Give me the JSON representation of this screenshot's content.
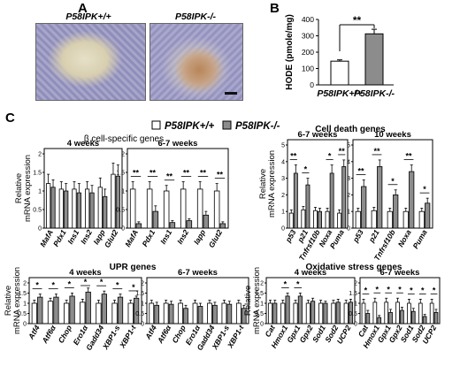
{
  "panels": {
    "A": "A",
    "B": "B",
    "C": "C"
  },
  "micrograph_labels": {
    "left": "P58IPK+/+",
    "right": "P58IPK-/-"
  },
  "legend": {
    "wt": "P58IPK+/+",
    "ko": "P58IPK-/-"
  },
  "colors": {
    "wt_fill": "#ffffff",
    "ko_fill": "#8c8c8c",
    "axis": "#000000"
  },
  "chart_data": [
    {
      "id": "B",
      "type": "bar",
      "ylabel": "HODE (pmole/mg)",
      "ylim": [
        0,
        400
      ],
      "yticks": [
        0,
        100,
        200,
        300,
        400
      ],
      "categories": [
        "P58IPK+/+",
        "P58IPK-/-"
      ],
      "values": [
        145,
        312
      ],
      "errors": [
        8,
        28
      ],
      "significance": "**"
    },
    {
      "id": "beta-4wk",
      "type": "bar",
      "group_title": "β cell-specific genes",
      "subtitle": "4 weeks",
      "ylabel": "Relative mRNA expression",
      "ylim": [
        0,
        2
      ],
      "yticks": [
        0,
        0.5,
        1,
        1.5,
        2
      ],
      "categories": [
        "MafA",
        "Pdx1",
        "Ins1",
        "Ins2",
        "Iapp",
        "Glut2"
      ],
      "series": [
        {
          "name": "P58IPK+/+",
          "values": [
            1.2,
            1.05,
            1.05,
            1.05,
            1.1,
            1.45
          ],
          "errors": [
            0.25,
            0.2,
            0.2,
            0.2,
            0.25,
            0.3
          ]
        },
        {
          "name": "P58IPK-/-",
          "values": [
            1.1,
            1.0,
            0.95,
            0.95,
            0.85,
            1.4
          ],
          "errors": [
            0.2,
            0.2,
            0.25,
            0.2,
            0.2,
            0.3
          ]
        }
      ],
      "significance": [
        "",
        "",
        "",
        "",
        "",
        ""
      ]
    },
    {
      "id": "beta-67wk",
      "type": "bar",
      "subtitle": "6-7 weeks",
      "ylim": [
        0,
        2
      ],
      "yticks": [
        0,
        0.5,
        1,
        1.5,
        2
      ],
      "categories": [
        "MafA",
        "Pdx1",
        "Ins1",
        "Ins2",
        "Iapp",
        "Glut2"
      ],
      "series": [
        {
          "name": "P58IPK+/+",
          "values": [
            1.05,
            1.05,
            1.0,
            1.05,
            1.05,
            1.0
          ],
          "errors": [
            0.2,
            0.2,
            0.15,
            0.2,
            0.2,
            0.2
          ]
        },
        {
          "name": "P58IPK-/-",
          "values": [
            0.12,
            0.45,
            0.15,
            0.2,
            0.35,
            0.12
          ],
          "errors": [
            0.05,
            0.15,
            0.05,
            0.05,
            0.1,
            0.05
          ]
        }
      ],
      "significance": [
        "**",
        "**",
        "**",
        "**",
        "**",
        "**"
      ]
    },
    {
      "id": "death-67wk",
      "type": "bar",
      "group_title": "Cell death genes",
      "subtitle": "6-7 weeks",
      "ylabel": "Relative mRNA expression",
      "ylim": [
        0,
        5
      ],
      "yticks": [
        0,
        1,
        2,
        3,
        4,
        5
      ],
      "categories": [
        "p53",
        "p21",
        "Tnfrsf10b",
        "Noxa",
        "Puma"
      ],
      "series": [
        {
          "name": "P58IPK+/+",
          "values": [
            0.9,
            1.1,
            1.05,
            1.0,
            0.9
          ],
          "errors": [
            0.2,
            0.2,
            0.2,
            0.2,
            0.2
          ]
        },
        {
          "name": "P58IPK-/-",
          "values": [
            3.3,
            2.6,
            1.0,
            3.3,
            3.7
          ],
          "errors": [
            0.5,
            0.4,
            0.2,
            0.5,
            0.4
          ]
        }
      ],
      "significance": [
        "**",
        "*",
        "",
        "*",
        "**"
      ]
    },
    {
      "id": "death-10wk",
      "type": "bar",
      "subtitle": "10 weeks",
      "ylim": [
        0,
        5
      ],
      "yticks": [
        0,
        1,
        2,
        3,
        4,
        5
      ],
      "categories": [
        "p53",
        "p21",
        "Tnfrsf10b",
        "Noxa",
        "Puma"
      ],
      "series": [
        {
          "name": "P58IPK+/+",
          "values": [
            1.0,
            1.05,
            1.0,
            1.0,
            1.0
          ],
          "errors": [
            0.2,
            0.2,
            0.2,
            0.2,
            0.2
          ]
        },
        {
          "name": "P58IPK-/-",
          "values": [
            2.5,
            3.7,
            2.0,
            3.4,
            1.5
          ],
          "errors": [
            0.4,
            0.4,
            0.3,
            0.4,
            0.3
          ]
        }
      ],
      "significance": [
        "**",
        "**",
        "*",
        "**",
        "*"
      ]
    },
    {
      "id": "upr-4wk",
      "type": "bar",
      "group_title": "UPR genes",
      "subtitle": "4 weeks",
      "ylabel": "Relative mRNA expression",
      "ylim": [
        0,
        2
      ],
      "yticks": [
        0,
        0.5,
        1,
        1.5,
        2
      ],
      "categories": [
        "Atf4",
        "Atf6α",
        "Chop",
        "Ero1α",
        "Gadd34",
        "XBP1-s",
        "XBP1-t"
      ],
      "series": [
        {
          "name": "P58IPK+/+",
          "values": [
            1.0,
            1.1,
            1.0,
            1.05,
            1.0,
            1.0,
            1.0
          ],
          "errors": [
            0.15,
            0.15,
            0.15,
            0.15,
            0.15,
            0.15,
            0.15
          ]
        },
        {
          "name": "P58IPK-/-",
          "values": [
            1.3,
            1.3,
            1.35,
            1.55,
            1.45,
            1.3,
            1.25
          ],
          "errors": [
            0.15,
            0.15,
            0.15,
            0.2,
            0.15,
            0.15,
            0.1
          ]
        }
      ],
      "significance": [
        "*",
        "*",
        "*",
        "*",
        "*",
        "*",
        "*"
      ]
    },
    {
      "id": "upr-67wk",
      "type": "bar",
      "subtitle": "6-7 weeks",
      "ylim": [
        0,
        2
      ],
      "yticks": [
        0,
        0.5,
        1,
        1.5,
        2
      ],
      "categories": [
        "Atf4",
        "Atf6α",
        "Chop",
        "Ero1α",
        "Gadd34",
        "XBP1-s",
        "XBP1-t"
      ],
      "series": [
        {
          "name": "P58IPK+/+",
          "values": [
            1.0,
            1.0,
            1.0,
            1.0,
            1.0,
            1.0,
            1.0
          ],
          "errors": [
            0.15,
            0.15,
            0.15,
            0.15,
            0.15,
            0.15,
            0.15
          ]
        },
        {
          "name": "P58IPK-/-",
          "values": [
            0.9,
            0.95,
            0.75,
            0.85,
            0.9,
            0.95,
            0.75
          ],
          "errors": [
            0.15,
            0.15,
            0.15,
            0.15,
            0.15,
            0.15,
            0.15
          ]
        }
      ],
      "significance": [
        "",
        "",
        "",
        "",
        "",
        "",
        ""
      ]
    },
    {
      "id": "ox-4wk",
      "type": "bar",
      "group_title": "Oxidative stress genes",
      "subtitle": "4 weeks",
      "ylabel": "Relative mRNA expression",
      "ylim": [
        0,
        2
      ],
      "yticks": [
        0,
        0.5,
        1,
        1.5,
        2
      ],
      "categories": [
        "Cat",
        "Hmox1",
        "Gpx1",
        "Gpx2",
        "Sod1",
        "Sod2",
        "UCP2"
      ],
      "series": [
        {
          "name": "P58IPK+/+",
          "values": [
            1.0,
            1.0,
            1.0,
            1.0,
            1.0,
            1.0,
            1.0
          ],
          "errors": [
            0.15,
            0.15,
            0.15,
            0.15,
            0.15,
            0.15,
            0.15
          ]
        },
        {
          "name": "P58IPK-/-",
          "values": [
            1.0,
            1.35,
            1.35,
            1.1,
            1.0,
            1.05,
            1.05
          ],
          "errors": [
            0.15,
            0.15,
            0.15,
            0.15,
            0.1,
            0.15,
            0.15
          ]
        }
      ],
      "significance": [
        "",
        "*",
        "*",
        "",
        "",
        "",
        ""
      ]
    },
    {
      "id": "ox-67wk",
      "type": "bar",
      "subtitle": "6-7 weeks",
      "ylim": [
        0,
        2
      ],
      "yticks": [
        0,
        0.5,
        1,
        1.5,
        2
      ],
      "categories": [
        "Cat",
        "Hmox1",
        "Gpx1",
        "Gpx2",
        "Sod1",
        "Sod2",
        "UCP2"
      ],
      "series": [
        {
          "name": "P58IPK+/+",
          "values": [
            1.0,
            1.05,
            1.05,
            1.05,
            1.0,
            1.0,
            1.0
          ],
          "errors": [
            0.2,
            0.2,
            0.2,
            0.2,
            0.2,
            0.2,
            0.2
          ]
        },
        {
          "name": "P58IPK-/-",
          "values": [
            0.5,
            0.3,
            0.55,
            0.65,
            0.6,
            0.35,
            0.55
          ],
          "errors": [
            0.15,
            0.1,
            0.15,
            0.15,
            0.15,
            0.1,
            0.15
          ]
        }
      ],
      "significance": [
        "*",
        "*",
        "*",
        "*",
        "*",
        "*",
        "*"
      ]
    }
  ]
}
